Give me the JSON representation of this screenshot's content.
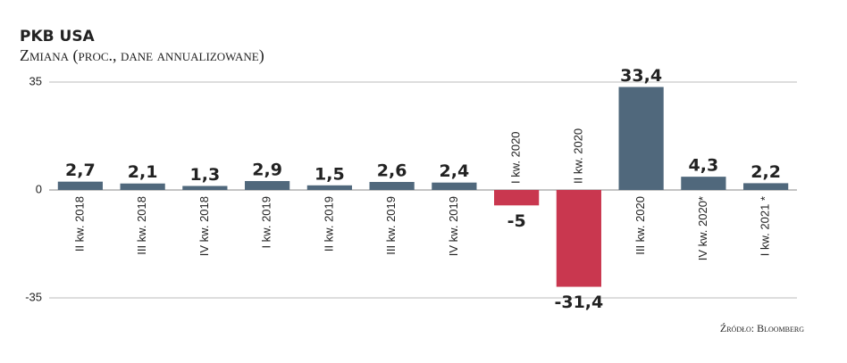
{
  "chart_data": {
    "type": "bar",
    "title": "PKB USA",
    "subtitle": "Zmiana (proc., dane annualizowane)",
    "source": "Źródło: Bloomberg",
    "categories": [
      "II kw. 2018",
      "III kw. 2018",
      "IV kw. 2018",
      "I kw. 2019",
      "II kw. 2019",
      "III kw. 2019",
      "IV kw. 2019",
      "I kw. 2020",
      "II kw. 2020",
      "III kw. 2020",
      "IV kw. 2020*",
      "I kw. 2021 *"
    ],
    "values": [
      2.7,
      2.1,
      1.3,
      2.9,
      1.5,
      2.6,
      2.4,
      -5,
      -31.4,
      33.4,
      4.3,
      2.2
    ],
    "value_labels": [
      "2,7",
      "2,1",
      "1,3",
      "2,9",
      "1,5",
      "2,6",
      "2,4",
      "-5",
      "-31,4",
      "33,4",
      "4,3",
      "2,2"
    ],
    "color": "#50687c",
    "negative_color": "#c9374f",
    "ylim": [
      -35,
      35
    ],
    "yticks": [
      -35,
      0,
      35
    ],
    "grid": true
  }
}
